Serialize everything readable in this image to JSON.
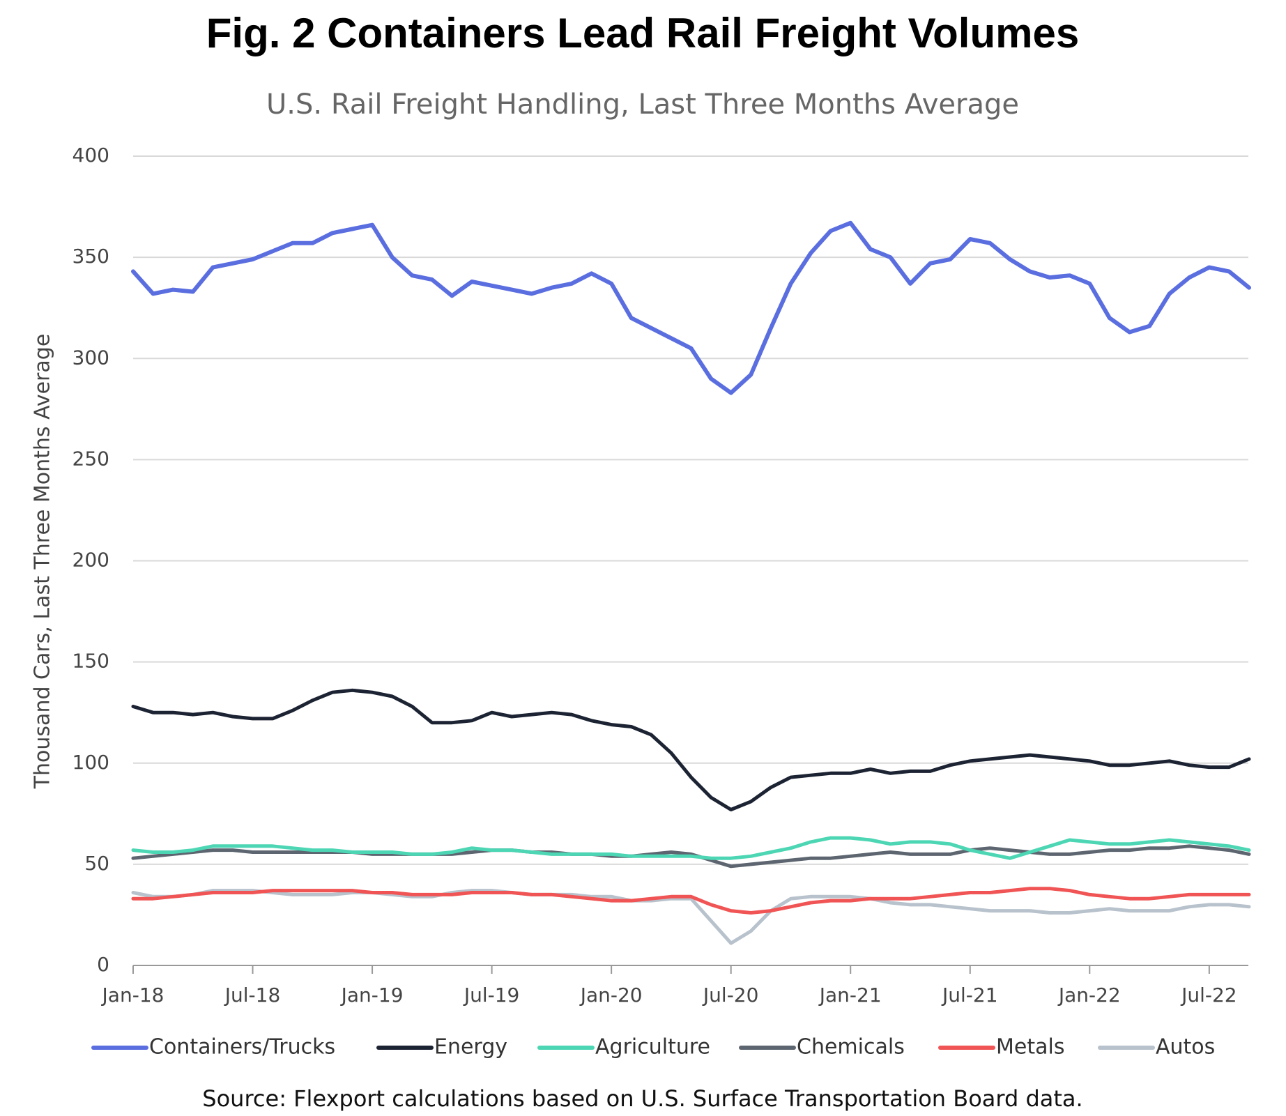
{
  "chart_data": {
    "type": "line",
    "title": "Fig. 2 Containers Lead Rail Freight Volumes",
    "subtitle": "U.S. Rail Freight Handling, Last Three Months Average",
    "y_label": "Thousand Cars, Last Three Months Average",
    "source": "Source: Flexport calculations based on U.S. Surface Transportation Board data.",
    "categories": [
      "Jan-18",
      null,
      null,
      null,
      null,
      null,
      "Jul-18",
      null,
      null,
      null,
      null,
      null,
      "Jan-19",
      null,
      null,
      null,
      null,
      null,
      "Jul-19",
      null,
      null,
      null,
      null,
      null,
      "Jan-20",
      null,
      null,
      null,
      null,
      null,
      "Jul-20",
      null,
      null,
      null,
      null,
      null,
      "Jan-21",
      null,
      null,
      null,
      null,
      null,
      "Jul-21",
      null,
      null,
      null,
      null,
      null,
      "Jan-22",
      null,
      null,
      null,
      null,
      null,
      "Jul-22",
      null,
      null
    ],
    "ylim": [
      0,
      400
    ],
    "yticks": [
      0,
      50,
      100,
      150,
      200,
      250,
      300,
      350,
      400
    ],
    "grid": true,
    "legend": "bottom",
    "series": [
      {
        "name": "Containers/Trucks",
        "color": "#5a6ee0",
        "values": [
          343,
          332,
          334,
          333,
          345,
          347,
          349,
          353,
          357,
          357,
          362,
          364,
          366,
          350,
          341,
          339,
          331,
          338,
          336,
          334,
          332,
          335,
          337,
          342,
          337,
          320,
          315,
          310,
          305,
          290,
          283,
          292,
          315,
          337,
          352,
          363,
          367,
          354,
          350,
          337,
          347,
          349,
          359,
          357,
          349,
          343,
          340,
          341,
          337,
          320,
          313,
          316,
          332,
          340,
          345,
          343,
          335
        ]
      },
      {
        "name": "Energy",
        "color": "#1c2333",
        "values": [
          128,
          125,
          125,
          124,
          125,
          123,
          122,
          122,
          126,
          131,
          135,
          136,
          135,
          133,
          128,
          120,
          120,
          121,
          125,
          123,
          124,
          125,
          124,
          121,
          119,
          118,
          114,
          105,
          93,
          83,
          77,
          81,
          88,
          93,
          94,
          95,
          95,
          97,
          95,
          96,
          96,
          99,
          101,
          102,
          103,
          104,
          103,
          102,
          101,
          99,
          99,
          100,
          101,
          99,
          98,
          98,
          102
        ]
      },
      {
        "name": "Agriculture",
        "color": "#4dd6b4",
        "values": [
          57,
          56,
          56,
          57,
          59,
          59,
          59,
          59,
          58,
          57,
          57,
          56,
          56,
          56,
          55,
          55,
          56,
          58,
          57,
          57,
          56,
          55,
          55,
          55,
          55,
          54,
          54,
          54,
          54,
          53,
          53,
          54,
          56,
          58,
          61,
          63,
          63,
          62,
          60,
          61,
          61,
          60,
          57,
          55,
          53,
          56,
          59,
          62,
          61,
          60,
          60,
          61,
          62,
          61,
          60,
          59,
          57
        ]
      },
      {
        "name": "Chemicals",
        "color": "#5d6670",
        "values": [
          53,
          54,
          55,
          56,
          57,
          57,
          56,
          56,
          56,
          56,
          56,
          56,
          55,
          55,
          55,
          55,
          55,
          56,
          57,
          57,
          56,
          56,
          55,
          55,
          54,
          54,
          55,
          56,
          55,
          52,
          49,
          50,
          51,
          52,
          53,
          53,
          54,
          55,
          56,
          55,
          55,
          55,
          57,
          58,
          57,
          56,
          55,
          55,
          56,
          57,
          57,
          58,
          58,
          59,
          58,
          57,
          55
        ]
      },
      {
        "name": "Metals",
        "color": "#f05454",
        "values": [
          33,
          33,
          34,
          35,
          36,
          36,
          36,
          37,
          37,
          37,
          37,
          37,
          36,
          36,
          35,
          35,
          35,
          36,
          36,
          36,
          35,
          35,
          34,
          33,
          32,
          32,
          33,
          34,
          34,
          30,
          27,
          26,
          27,
          29,
          31,
          32,
          32,
          33,
          33,
          33,
          34,
          35,
          36,
          36,
          37,
          38,
          38,
          37,
          35,
          34,
          33,
          33,
          34,
          35,
          35,
          35,
          35
        ]
      },
      {
        "name": "Autos",
        "color": "#b8c2cc",
        "values": [
          36,
          34,
          34,
          35,
          37,
          37,
          37,
          36,
          35,
          35,
          35,
          36,
          36,
          35,
          34,
          34,
          36,
          37,
          37,
          36,
          35,
          35,
          35,
          34,
          34,
          32,
          32,
          33,
          33,
          22,
          11,
          17,
          27,
          33,
          34,
          34,
          34,
          33,
          31,
          30,
          30,
          29,
          28,
          27,
          27,
          27,
          26,
          26,
          27,
          28,
          27,
          27,
          27,
          29,
          30,
          30,
          29
        ]
      }
    ]
  }
}
